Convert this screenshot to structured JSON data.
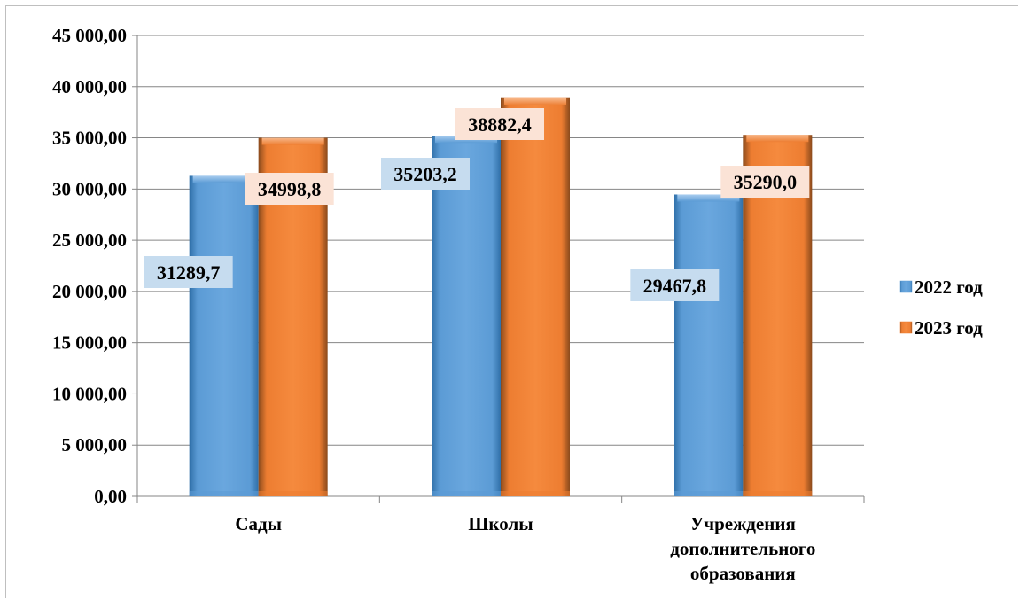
{
  "chart_data": {
    "type": "bar",
    "categories": [
      [
        "Сады"
      ],
      [
        "Школы"
      ],
      [
        "Учреждения",
        "дополнительного",
        "образования"
      ]
    ],
    "series": [
      {
        "name": "2022 год",
        "values": [
          31289.7,
          35203.2,
          29467.8
        ],
        "labels": [
          "31289,7",
          "35203,2",
          "29467,8"
        ],
        "color": "#5b9bd5",
        "label_bg": "#c6dcef"
      },
      {
        "name": "2023 год",
        "values": [
          34998.8,
          38882.4,
          35290.0
        ],
        "labels": [
          "34998,8",
          "38882,4",
          "35290,0"
        ],
        "color": "#ed7d31",
        "label_bg": "#fbe3d6"
      }
    ],
    "ylim": [
      0,
      45000
    ],
    "ytick_labels": [
      "0,00",
      "5 000,00",
      "10 000,00",
      "15 000,00",
      "20 000,00",
      "25 000,00",
      "30 000,00",
      "35 000,00",
      "40 000,00",
      "45 000,00"
    ],
    "grid": true,
    "legend_position": "right"
  }
}
